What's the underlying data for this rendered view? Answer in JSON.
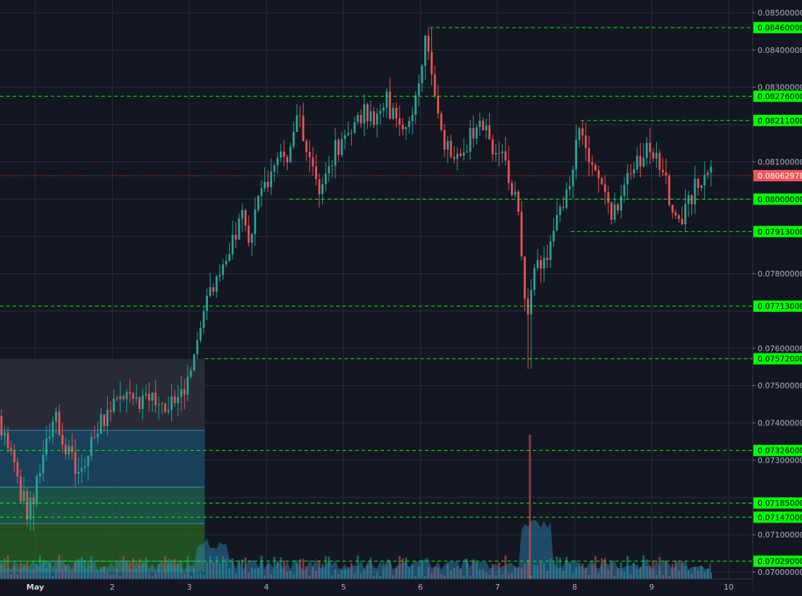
{
  "chart_data": {
    "type": "candlestick",
    "title": "",
    "xlabel": "",
    "ylabel": "",
    "ylim": [
      0.0697,
      0.0857
    ],
    "xlim": [
      0.52,
      10.3
    ],
    "grid": true,
    "colors": {
      "background": "#131722",
      "grid": "#2a2e39",
      "up": "#26a69a",
      "down": "#ef5350",
      "level_line": "#00ff00",
      "level_label_bg": "#00ff00",
      "current_label_bg": "#f2555a",
      "volume_area": "#2e8bbf",
      "axis_text": "#d1d4dc"
    },
    "x_ticks": [
      {
        "value": 1,
        "label": "May"
      },
      {
        "value": 2,
        "label": "2"
      },
      {
        "value": 3,
        "label": "3"
      },
      {
        "value": 4,
        "label": "4"
      },
      {
        "value": 5,
        "label": "5"
      },
      {
        "value": 6,
        "label": "6"
      },
      {
        "value": 7,
        "label": "7"
      },
      {
        "value": 8,
        "label": "8"
      },
      {
        "value": 9,
        "label": "9"
      },
      {
        "value": 10,
        "label": "10"
      }
    ],
    "y_ticks": [
      "0.07000000",
      "0.07100000",
      "0.07300000",
      "0.07400000",
      "0.07500000",
      "0.07600000",
      "0.07800000",
      "0.08100000",
      "0.08300000",
      "0.08400000",
      "0.08500000"
    ],
    "price_levels": [
      {
        "price": 0.0846,
        "label": "0.08460000",
        "x_start": 6.12
      },
      {
        "price": 0.08276,
        "label": "0.08276000",
        "x_start": 0.52
      },
      {
        "price": 0.08211,
        "label": "0.08211000",
        "x_start": 8.08
      },
      {
        "price": 0.08,
        "label": "0.08000000",
        "x_start": 4.3
      },
      {
        "price": 0.07913,
        "label": "0.07913000",
        "x_start": 7.95
      },
      {
        "price": 0.07713,
        "label": "0.07713000",
        "x_start": 0.52
      },
      {
        "price": 0.07572,
        "label": "0.07572000",
        "x_start": 3.2
      },
      {
        "price": 0.07326,
        "label": "0.07326000",
        "x_start": 0.52
      },
      {
        "price": 0.07185,
        "label": "0.07185000",
        "x_start": 0.52
      },
      {
        "price": 0.07147,
        "label": "0.07147000",
        "x_start": 0.52
      },
      {
        "price": 0.07029,
        "label": "0.07029000",
        "x_start": 0.52
      }
    ],
    "current_price": {
      "price": 0.0806297,
      "label": "0.08062970"
    },
    "zones": [
      {
        "x0": 0.52,
        "x1": 3.2,
        "y0": 0.07572,
        "y1": 0.0738,
        "color": "#2a2e39",
        "opacity": 0.9
      },
      {
        "x0": 0.52,
        "x1": 3.2,
        "y0": 0.0738,
        "y1": 0.07228,
        "color": "#1e4f6e",
        "opacity": 0.75
      },
      {
        "x0": 0.52,
        "x1": 3.2,
        "y0": 0.07228,
        "y1": 0.0713,
        "color": "#1e6b52",
        "opacity": 0.7
      },
      {
        "x0": 0.52,
        "x1": 3.2,
        "y0": 0.0713,
        "y1": 0.07,
        "color": "#2b6a24",
        "opacity": 0.7
      }
    ],
    "zone_lines": [
      0.0738,
      0.07228,
      0.0713,
      0.07029
    ],
    "anchors": [
      [
        0.52,
        0.0742
      ],
      [
        0.62,
        0.0738
      ],
      [
        0.75,
        0.073
      ],
      [
        0.85,
        0.0722
      ],
      [
        0.95,
        0.0715
      ],
      [
        1.08,
        0.0725
      ],
      [
        1.2,
        0.0734
      ],
      [
        1.3,
        0.0741
      ],
      [
        1.45,
        0.0733
      ],
      [
        1.6,
        0.0725
      ],
      [
        1.8,
        0.0738
      ],
      [
        1.95,
        0.0741
      ],
      [
        2.05,
        0.0745
      ],
      [
        2.2,
        0.0749
      ],
      [
        2.4,
        0.0745
      ],
      [
        2.6,
        0.0746
      ],
      [
        2.8,
        0.0745
      ],
      [
        2.95,
        0.0748
      ],
      [
        3.05,
        0.0752
      ],
      [
        3.15,
        0.076
      ],
      [
        3.2,
        0.077
      ],
      [
        3.3,
        0.0775
      ],
      [
        3.45,
        0.0778
      ],
      [
        3.6,
        0.0788
      ],
      [
        3.7,
        0.0797
      ],
      [
        3.8,
        0.0788
      ],
      [
        3.92,
        0.08
      ],
      [
        4.0,
        0.0804
      ],
      [
        4.15,
        0.0808
      ],
      [
        4.3,
        0.0812
      ],
      [
        4.45,
        0.0822
      ],
      [
        4.6,
        0.081
      ],
      [
        4.7,
        0.0802
      ],
      [
        4.85,
        0.081
      ],
      [
        5.0,
        0.0815
      ],
      [
        5.15,
        0.0818
      ],
      [
        5.3,
        0.0824
      ],
      [
        5.45,
        0.082
      ],
      [
        5.6,
        0.0826
      ],
      [
        5.75,
        0.0819
      ],
      [
        5.9,
        0.0822
      ],
      [
        6.05,
        0.0835
      ],
      [
        6.12,
        0.0844
      ],
      [
        6.22,
        0.083
      ],
      [
        6.35,
        0.0815
      ],
      [
        6.5,
        0.081
      ],
      [
        6.62,
        0.0812
      ],
      [
        6.75,
        0.082
      ],
      [
        6.9,
        0.0818
      ],
      [
        7.05,
        0.0812
      ],
      [
        7.15,
        0.0808
      ],
      [
        7.3,
        0.0798
      ],
      [
        7.42,
        0.0766
      ],
      [
        7.5,
        0.0782
      ],
      [
        7.62,
        0.0782
      ],
      [
        7.72,
        0.0788
      ],
      [
        7.82,
        0.0795
      ],
      [
        7.95,
        0.0803
      ],
      [
        8.08,
        0.0817
      ],
      [
        8.22,
        0.0812
      ],
      [
        8.38,
        0.0805
      ],
      [
        8.5,
        0.0796
      ],
      [
        8.65,
        0.08
      ],
      [
        8.8,
        0.0808
      ],
      [
        8.95,
        0.0812
      ],
      [
        9.08,
        0.0813
      ],
      [
        9.2,
        0.0806
      ],
      [
        9.3,
        0.0797
      ],
      [
        9.42,
        0.0795
      ],
      [
        9.55,
        0.0801
      ],
      [
        9.7,
        0.0806
      ],
      [
        9.78,
        0.0807
      ]
    ],
    "volume_spikes": [
      {
        "x": 7.42,
        "value": 0.64
      }
    ]
  }
}
